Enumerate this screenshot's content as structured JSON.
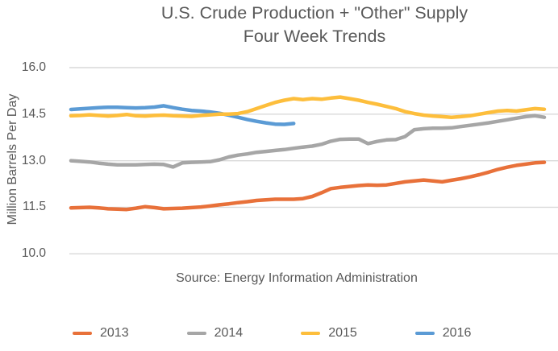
{
  "chart_data": {
    "type": "line",
    "title": "U.S. Crude Production + \"Other\" Supply",
    "subtitle": "Four Week Trends",
    "ylabel": "Million Barrels Per Day",
    "source": "Source: Energy Information Administration",
    "x_unit": "week of year (1-52), no x-axis labels shown",
    "ylim": [
      10.0,
      16.0
    ],
    "yticks": [
      "16.0",
      "14.5",
      "13.0",
      "11.5",
      "10.0"
    ],
    "ytick_values": [
      16.0,
      14.5,
      13.0,
      11.5,
      10.0
    ],
    "grid": "horizontal gridlines only, light gray",
    "legend_position": "bottom",
    "colors": {
      "grid": "#D9D9D9",
      "text": "#595959",
      "background": "#FFFFFF"
    },
    "series": [
      {
        "name": "2013",
        "color": "#E8713A",
        "values": [
          11.48,
          11.49,
          11.5,
          11.48,
          11.45,
          11.44,
          11.43,
          11.47,
          11.52,
          11.49,
          11.45,
          11.46,
          11.47,
          11.49,
          11.51,
          11.54,
          11.58,
          11.61,
          11.65,
          11.68,
          11.72,
          11.74,
          11.76,
          11.76,
          11.76,
          11.78,
          11.85,
          11.97,
          12.1,
          12.14,
          12.17,
          12.2,
          12.22,
          12.21,
          12.22,
          12.27,
          12.32,
          12.35,
          12.38,
          12.35,
          12.32,
          12.37,
          12.42,
          12.48,
          12.55,
          12.63,
          12.72,
          12.79,
          12.85,
          12.89,
          12.93,
          12.95
        ]
      },
      {
        "name": "2014",
        "color": "#A6A6A6",
        "values": [
          13.0,
          12.98,
          12.96,
          12.92,
          12.89,
          12.87,
          12.87,
          12.87,
          12.88,
          12.89,
          12.88,
          12.8,
          12.93,
          12.95,
          12.96,
          12.97,
          13.03,
          13.12,
          13.18,
          13.22,
          13.27,
          13.3,
          13.33,
          13.36,
          13.4,
          13.44,
          13.47,
          13.53,
          13.63,
          13.69,
          13.7,
          13.7,
          13.55,
          13.62,
          13.67,
          13.68,
          13.78,
          14.0,
          14.03,
          14.05,
          14.05,
          14.06,
          14.1,
          14.14,
          14.18,
          14.22,
          14.27,
          14.32,
          14.37,
          14.42,
          14.45,
          14.4
        ]
      },
      {
        "name": "2015",
        "color": "#FDBE3C",
        "values": [
          14.45,
          14.46,
          14.48,
          14.46,
          14.44,
          14.46,
          14.49,
          14.45,
          14.44,
          14.46,
          14.47,
          14.45,
          14.44,
          14.43,
          14.46,
          14.48,
          14.5,
          14.5,
          14.52,
          14.58,
          14.68,
          14.78,
          14.88,
          14.95,
          15.0,
          14.97,
          15.0,
          14.98,
          15.02,
          15.05,
          15.0,
          14.95,
          14.88,
          14.82,
          14.75,
          14.68,
          14.58,
          14.52,
          14.47,
          14.44,
          14.42,
          14.4,
          14.42,
          14.45,
          14.5,
          14.55,
          14.6,
          14.62,
          14.6,
          14.64,
          14.68,
          14.66
        ]
      },
      {
        "name": "2016",
        "color": "#5B9BD5",
        "values": [
          14.65,
          14.67,
          14.69,
          14.71,
          14.72,
          14.72,
          14.71,
          14.7,
          14.71,
          14.73,
          14.77,
          14.71,
          14.66,
          14.62,
          14.6,
          14.57,
          14.53,
          14.47,
          14.4,
          14.33,
          14.27,
          14.22,
          14.18,
          14.17,
          14.2
        ]
      }
    ]
  }
}
